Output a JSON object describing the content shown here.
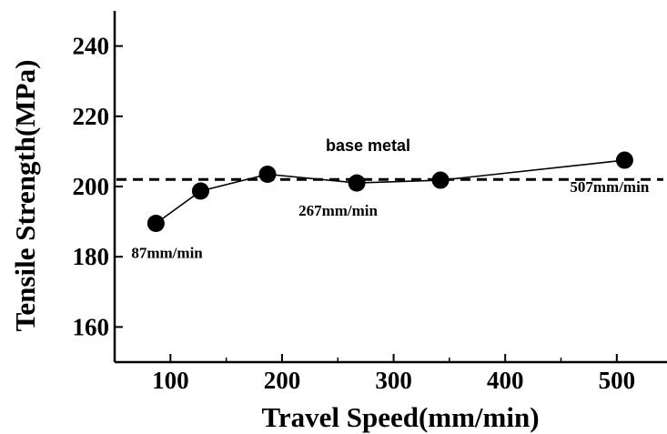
{
  "chart_data": {
    "type": "line",
    "title": "",
    "xlabel": "Travel Speed(mm/min)",
    "ylabel": "Tensile Strength(MPa)",
    "xlim": [
      50,
      545
    ],
    "ylim": [
      150,
      250
    ],
    "xticks": [
      100,
      200,
      300,
      400,
      500
    ],
    "yticks": [
      160,
      180,
      200,
      220,
      240
    ],
    "grid": false,
    "legend": "none",
    "series": [
      {
        "x": [
          87,
          127,
          187,
          267,
          342,
          507
        ],
        "y": [
          189.5,
          198.7,
          203.5,
          201.0,
          201.8,
          207.5
        ],
        "marker": "circle",
        "color": "#000000"
      }
    ],
    "reference_line": {
      "y": 202,
      "style": "dashed",
      "label": "base metal"
    },
    "annotations": [
      {
        "text": "87mm/min",
        "x": 87,
        "y": 189.5
      },
      {
        "text": "267mm/min",
        "x": 267,
        "y": 201.0
      },
      {
        "text": "507mm/min",
        "x": 507,
        "y": 207.5
      }
    ]
  }
}
